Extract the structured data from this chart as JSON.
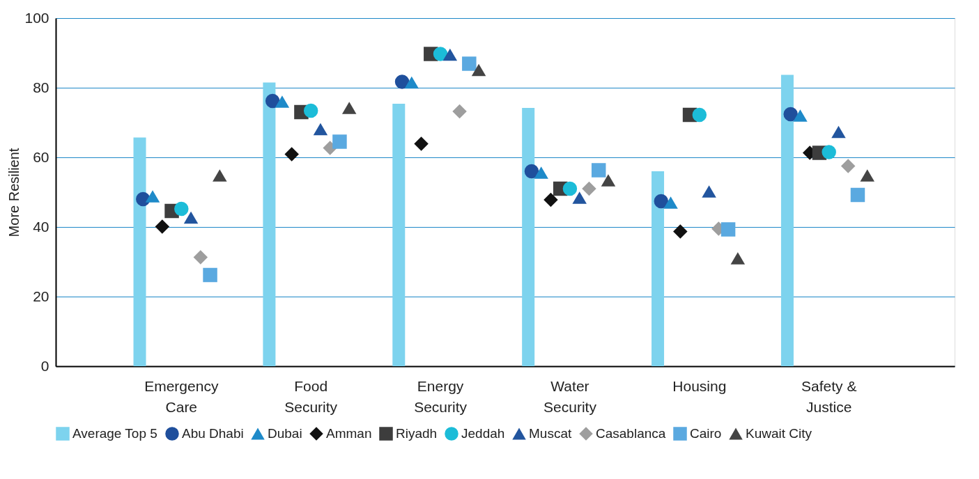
{
  "chart_data": {
    "type": "bar",
    "ylabel": "More Resilient",
    "categories": [
      "Emergency Care",
      "Food Security",
      "Energy Security",
      "Water Security",
      "Housing",
      "Safety & Justice"
    ],
    "ylim": [
      0,
      100
    ],
    "yticks": [
      0,
      20,
      40,
      60,
      80,
      100
    ],
    "grid": "y",
    "legend": "bottom",
    "series": [
      {
        "name": "Average Top 5",
        "color": "#7dd3ee",
        "marker": "square",
        "values": [
          65.7,
          81.5,
          75.4,
          74.2,
          56,
          83.7
        ]
      },
      {
        "name": "Abu Dhabi",
        "type": "scatter",
        "color": "#1f4f9c",
        "marker": "circle",
        "values": [
          48,
          76.2,
          81.7,
          56,
          47.4,
          72.4
        ]
      },
      {
        "name": "Dubai",
        "type": "scatter",
        "color": "#1e8ac9",
        "marker": "triangle",
        "values": [
          48.8,
          76,
          81.5,
          55.6,
          47,
          72
        ]
      },
      {
        "name": "Amman",
        "type": "scatter",
        "color": "#111111",
        "marker": "diamond",
        "values": [
          40.1,
          60.9,
          63.9,
          47.8,
          38.7,
          61.3
        ]
      },
      {
        "name": "Riyadh",
        "type": "scatter",
        "color": "#3d3d3d",
        "marker": "square",
        "values": [
          44.6,
          73,
          89.7,
          51,
          72.2,
          61.3
        ]
      },
      {
        "name": "Jeddah",
        "type": "scatter",
        "color": "#1cbcd8",
        "marker": "circle",
        "values": [
          45.2,
          73.4,
          89.7,
          51,
          72.2,
          61.5
        ]
      },
      {
        "name": "Muscat",
        "type": "scatter",
        "color": "#22559e",
        "marker": "triangle",
        "values": [
          42.7,
          68.1,
          89.5,
          48.4,
          50.2,
          67.3
        ]
      },
      {
        "name": "Casablanca",
        "type": "scatter",
        "color": "#9e9e9e",
        "marker": "diamond",
        "values": [
          31.3,
          62.7,
          73.2,
          51,
          39.5,
          57.5
        ]
      },
      {
        "name": "Cairo",
        "type": "scatter",
        "color": "#5aa9e0",
        "marker": "square",
        "values": [
          26.2,
          64.5,
          86.9,
          56.3,
          39.3,
          49.2
        ]
      },
      {
        "name": "Kuwait City",
        "type": "scatter",
        "color": "#444444",
        "marker": "triangle",
        "values": [
          54.8,
          74.2,
          85.1,
          53.4,
          31,
          54.8
        ]
      }
    ]
  }
}
